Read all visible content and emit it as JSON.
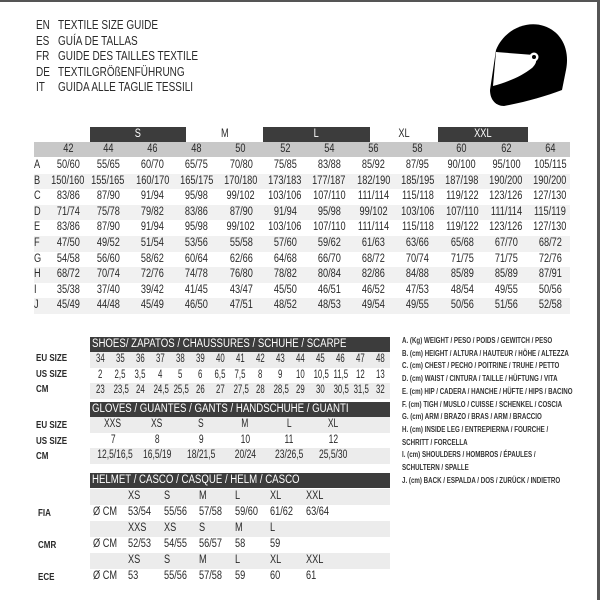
{
  "title_lines": [
    {
      "code": "EN",
      "text": "TEXTILE SIZE GUIDE"
    },
    {
      "code": "ES",
      "text": "GUÍA DE TALLAS"
    },
    {
      "code": "FR",
      "text": "GUIDE DES TAILLES TEXTILE"
    },
    {
      "code": "DE",
      "text": "TEXTILGRÖßENFÜHRUNG"
    },
    {
      "code": "IT",
      "text": "GUIDA ALLE TAGLIE TESSILI"
    }
  ],
  "icon": "helmet-icon",
  "textile": {
    "size_groups": [
      "S",
      "M",
      "L",
      "XL",
      "XXL"
    ],
    "sizes": [
      "42",
      "44",
      "46",
      "48",
      "50",
      "52",
      "54",
      "56",
      "58",
      "60",
      "62",
      "64"
    ],
    "rows": [
      {
        "label": "A",
        "values": [
          "50/60",
          "55/65",
          "60/70",
          "65/75",
          "70/80",
          "75/85",
          "83/88",
          "85/92",
          "87/95",
          "90/100",
          "95/100",
          "105/115"
        ]
      },
      {
        "label": "B",
        "values": [
          "150/160",
          "155/165",
          "160/170",
          "165/175",
          "170/180",
          "173/183",
          "177/187",
          "182/190",
          "185/195",
          "187/198",
          "190/200",
          "190/200"
        ]
      },
      {
        "label": "C",
        "values": [
          "83/86",
          "87/90",
          "91/94",
          "95/98",
          "99/102",
          "103/106",
          "107/110",
          "111/114",
          "115/118",
          "119/122",
          "123/126",
          "127/130"
        ]
      },
      {
        "label": "D",
        "values": [
          "71/74",
          "75/78",
          "79/82",
          "83/86",
          "87/90",
          "91/94",
          "95/98",
          "99/102",
          "103/106",
          "107/110",
          "111/114",
          "115/119"
        ]
      },
      {
        "label": "E",
        "values": [
          "83/86",
          "87/90",
          "91/94",
          "95/98",
          "99/102",
          "103/106",
          "107/110",
          "111/114",
          "115/118",
          "119/122",
          "123/126",
          "127/130"
        ]
      },
      {
        "label": "F",
        "values": [
          "47/50",
          "49/52",
          "51/54",
          "53/56",
          "55/58",
          "57/60",
          "59/62",
          "61/63",
          "63/66",
          "65/68",
          "67/70",
          "68/72"
        ]
      },
      {
        "label": "G",
        "values": [
          "54/58",
          "56/60",
          "58/62",
          "60/64",
          "62/66",
          "64/68",
          "66/70",
          "68/72",
          "70/74",
          "71/75",
          "71/75",
          "72/76"
        ]
      },
      {
        "label": "H",
        "values": [
          "68/72",
          "70/74",
          "72/76",
          "74/78",
          "76/80",
          "78/82",
          "80/84",
          "82/86",
          "84/88",
          "85/89",
          "85/89",
          "87/91"
        ]
      },
      {
        "label": "I",
        "values": [
          "35/38",
          "37/40",
          "39/42",
          "41/45",
          "43/47",
          "45/50",
          "46/51",
          "46/52",
          "47/53",
          "48/54",
          "49/55",
          "50/56"
        ]
      },
      {
        "label": "J",
        "values": [
          "45/49",
          "44/48",
          "45/49",
          "46/50",
          "47/51",
          "48/52",
          "48/53",
          "49/54",
          "49/55",
          "50/56",
          "51/56",
          "52/58"
        ]
      }
    ]
  },
  "shoes": {
    "header": "SHOES/ ZAPATOS / CHAUSSURES / SCHUHE / SCARPE",
    "rows": [
      {
        "label": "EU SIZE",
        "values": [
          "34",
          "35",
          "36",
          "37",
          "38",
          "39",
          "40",
          "41",
          "42",
          "43",
          "44",
          "45",
          "46",
          "47",
          "48"
        ]
      },
      {
        "label": "US SIZE",
        "values": [
          "2",
          "2,5",
          "3,5",
          "4",
          "5",
          "6",
          "6,5",
          "7,5",
          "8",
          "9",
          "10",
          "10,5",
          "11,5",
          "12",
          "13"
        ]
      },
      {
        "label": "CM",
        "values": [
          "23",
          "23,5",
          "24",
          "24,5",
          "25,5",
          "26",
          "27",
          "27,5",
          "28",
          "28,5",
          "29",
          "30",
          "30,5",
          "31,5",
          "32"
        ]
      }
    ]
  },
  "gloves": {
    "header": "GLOVES / GUANTES / GANTS / HANDSCHUHE / GUANTI",
    "rows": [
      {
        "label": "EU SIZE",
        "values": [
          "XXS",
          "XS",
          "S",
          "M",
          "L",
          "XL"
        ]
      },
      {
        "label": "US SIZE",
        "values": [
          "7",
          "8",
          "9",
          "10",
          "11",
          "12"
        ]
      },
      {
        "label": "CM",
        "values": [
          "12,5/16,5",
          "16,5/19",
          "18/21,5",
          "20/24",
          "23/26,5",
          "25,5/30"
        ]
      }
    ]
  },
  "helmet": {
    "header": "HELMET / CASCO / CASQUE / HELM / CASCO",
    "unit": "Ø CM",
    "standards": [
      {
        "label": "FIA",
        "sizes": [
          "XS",
          "S",
          "M",
          "L",
          "XL",
          "XXL"
        ],
        "values": [
          "53/54",
          "55/56",
          "57/58",
          "59/60",
          "61/62",
          "63/64"
        ]
      },
      {
        "label": "CMR",
        "sizes": [
          "XXS",
          "XS",
          "S",
          "M",
          "L"
        ],
        "values": [
          "52/53",
          "54/55",
          "56/57",
          "58",
          "59"
        ]
      },
      {
        "label": "ECE",
        "sizes": [
          "XS",
          "S",
          "M",
          "L",
          "XL",
          "XXL"
        ],
        "values": [
          "53",
          "55/56",
          "57/58",
          "59",
          "60",
          "61"
        ]
      }
    ]
  },
  "legend": [
    "A. (Kg) WEIGHT / PESO / POIDS / GEWITCH / PESO",
    "B. (cm) HEIGHT / ALTURA / HAUTEUR / HÖHE / ALTEZZA",
    "C. (cm) CHEST / PECHO / POITRINE / TRUHE / PETTO",
    "D. (cm) WAIST / CINTURA / TAILLE / HÜFTUNG / VITA",
    "E. (cm) HIP / CADERA / HANCHE / HÜFTE / HIPS /  BACINO",
    "F.  (cm) TIGH / MUSLO / CUISSE / SCHENKEL / COSCIA",
    "G. (cm) ARM  / BRAZO / BRAS / ARM / BRACCIO",
    "H. (cm) INSIDE LEG / ENTREPIERNA / FOURCHE /",
    "SCHRITT / FORCELLA",
    "I.  (cm) SHOULDERS / HOMBROS / ÉPAULES /",
    "SCHULTERN / SPALLE",
    "J. (cm) BACK / ESPALDA / DOS / ZURÜCK / INDIETRO"
  ],
  "colors": {
    "header_bar": "#3c3c3c",
    "row_shade": "#ececec",
    "size_row": "#c8c8c8"
  }
}
